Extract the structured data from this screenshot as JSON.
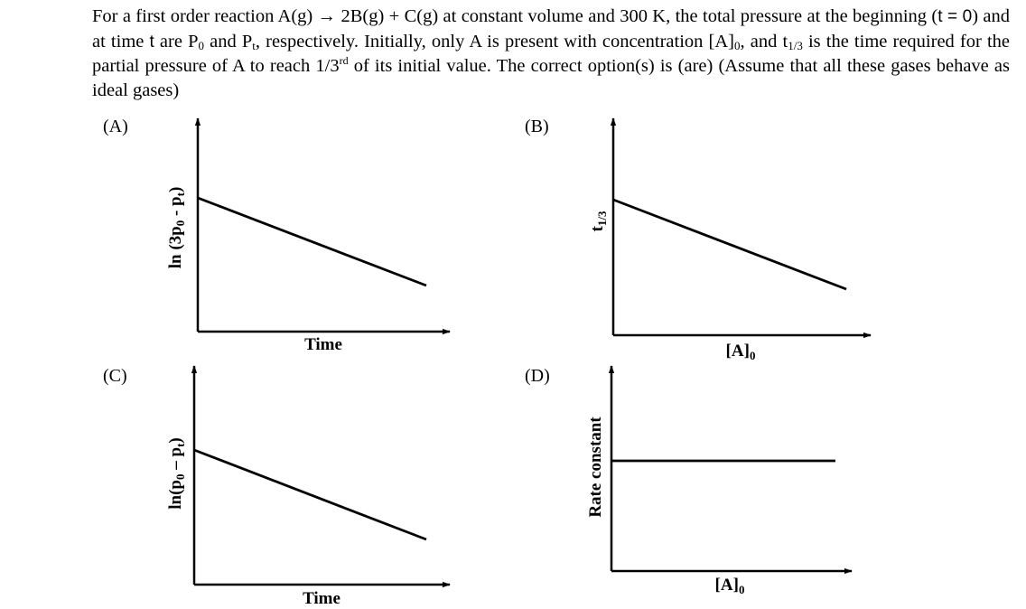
{
  "question": {
    "text_1": "For a first order reaction A(g) → 2B(g) + C(g) at constant volume and 300 K, the total pressure at the beginning (",
    "t_eq_0": "t = 0",
    "text_2": ") and at time ",
    "t_var": "t",
    "text_3": " are P",
    "p0_sub": "0",
    "text_4": " and P",
    "pt_sub": "t",
    "text_5": ", respectively. Initially, only A is present with concentration [A]",
    "a0_sub": "0",
    "text_6": ", and t",
    "t13_sub": "1/3",
    "text_7": " is the time required for the partial pressure of A to reach 1/3",
    "rd_sup": "rd",
    "text_8": " of its initial value. The correct option(s) is (are) (Assume that all these gases behave as ideal gases)"
  },
  "options": {
    "A": {
      "label": "(A)",
      "ylabel_main": "ln (3p",
      "ylabel_sub1": "0",
      "ylabel_mid": " - p",
      "ylabel_sub2": "t",
      "ylabel_end": ")",
      "xlabel": "Time"
    },
    "B": {
      "label": "(B)",
      "ylabel_main": "t",
      "ylabel_sub": "1/3",
      "xlabel_main": "[A]",
      "xlabel_sub": "0"
    },
    "C": {
      "label": "(C)",
      "ylabel_main": "ln(p",
      "ylabel_sub1": "0",
      "ylabel_mid": " – p",
      "ylabel_sub2": "t",
      "ylabel_end": ")",
      "xlabel": "Time"
    },
    "D": {
      "label": "(D)",
      "ylabel": "Rate constant",
      "xlabel_main": "[A]",
      "xlabel_sub": "0"
    }
  }
}
